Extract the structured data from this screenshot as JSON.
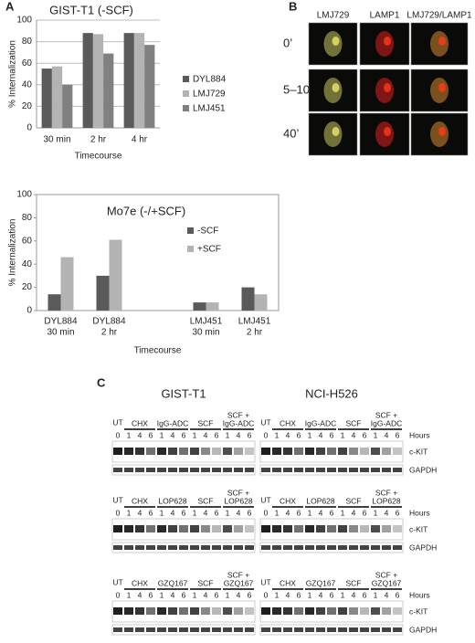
{
  "chart_data": [
    {
      "type": "bar",
      "panel": "A",
      "title": "GIST-T1 (-SCF)",
      "y_label": "% Internalization",
      "x_label": "Timecourse",
      "categories": [
        "30 min",
        "2 hr",
        "4 hr"
      ],
      "series": [
        {
          "name": "DYL884",
          "color": "#5a5a5a",
          "values": [
            55,
            88,
            88
          ]
        },
        {
          "name": "LMJ729",
          "color": "#b3b3b3",
          "values": [
            57,
            87,
            88
          ]
        },
        {
          "name": "LMJ451",
          "color": "#808080",
          "values": [
            40,
            69,
            77
          ]
        }
      ],
      "ylim": [
        0,
        100
      ],
      "yticks": [
        0,
        20,
        40,
        60,
        80,
        100
      ],
      "grid": true,
      "legend": "right"
    },
    {
      "type": "bar",
      "title": "Mo7e (-/+SCF)",
      "y_label": "% Internalization",
      "x_label": "Timecourse",
      "categories": [
        [
          "DYL884",
          "30 min"
        ],
        [
          "DYL884",
          "2 hr"
        ],
        null,
        [
          "LMJ451",
          "30 min"
        ],
        [
          "LMJ451",
          "2 hr"
        ]
      ],
      "series": [
        {
          "name": "-SCF",
          "color": "#5a5a5a",
          "values": [
            14,
            30,
            null,
            7,
            20
          ]
        },
        {
          "name": "+SCF",
          "color": "#b3b3b3",
          "values": [
            46,
            61,
            null,
            7,
            14
          ]
        }
      ],
      "ylim": [
        0,
        100
      ],
      "yticks": [
        0,
        20,
        40,
        60,
        80,
        100
      ],
      "grid": false,
      "legend": "upper right"
    }
  ],
  "microscopy": {
    "panel": "B",
    "columns": [
      "LMJ729",
      "LAMP1",
      "LMJ729/LAMP1"
    ],
    "rows": [
      "0’",
      "5–10’",
      "40’"
    ]
  },
  "blots": {
    "panel": "C",
    "cell_lines": [
      "GIST-T1",
      "NCI-H526"
    ],
    "hours": "Hours",
    "bands": [
      "c-KIT",
      "GAPDH"
    ],
    "panels": [
      {
        "untreated": "UT",
        "groups": [
          [
            "CHX"
          ],
          [
            "IgG-ADC"
          ],
          [
            "SCF"
          ],
          [
            "SCF +",
            "IgG-ADC"
          ]
        ],
        "lanes": [
          "0",
          "1",
          "4",
          "6",
          "1",
          "4",
          "6",
          "1",
          "4",
          "6",
          "1",
          "4",
          "6"
        ]
      },
      {
        "untreated": "UT",
        "groups": [
          [
            "CHX"
          ],
          [
            "LOP628"
          ],
          [
            "SCF"
          ],
          [
            "SCF +",
            "LOP628"
          ]
        ],
        "lanes": [
          "0",
          "1",
          "4",
          "6",
          "1",
          "4",
          "6",
          "1",
          "4",
          "6",
          "1",
          "4",
          "6"
        ]
      },
      {
        "untreated": "UT",
        "groups": [
          [
            "CHX"
          ],
          [
            "GZQ167"
          ],
          [
            "SCF"
          ],
          [
            "SCF +",
            "GZQ167"
          ]
        ],
        "lanes": [
          "0",
          "1",
          "4",
          "6",
          "1",
          "4",
          "6",
          "1",
          "4",
          "6",
          "1",
          "4",
          "6"
        ]
      }
    ]
  }
}
